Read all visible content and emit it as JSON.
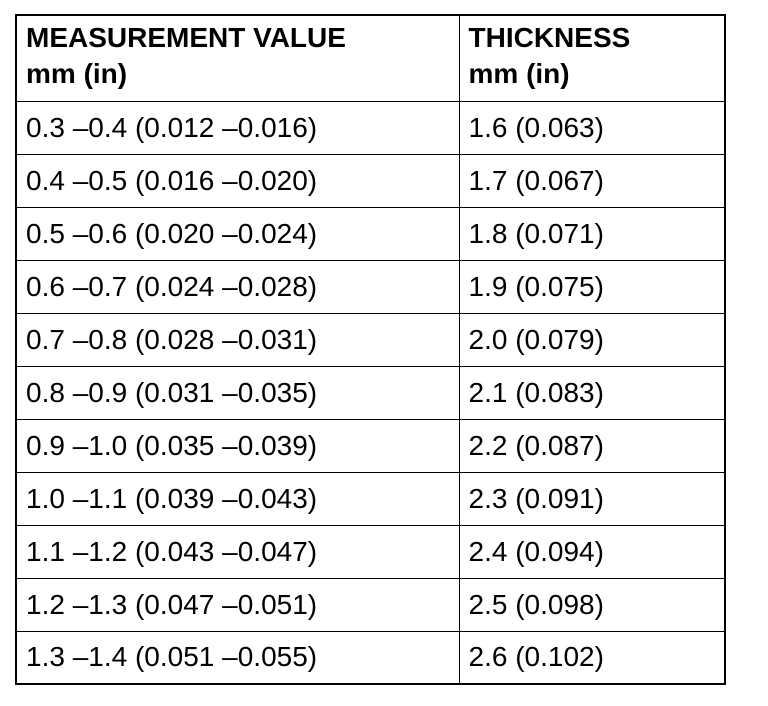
{
  "table": {
    "header": [
      [
        "MEASUREMENT VALUE",
        "mm (in)"
      ],
      [
        "THICKNESS",
        "mm (in)"
      ]
    ],
    "rows": [
      [
        "0.3 –0.4 (0.012 –0.016)",
        "1.6 (0.063)"
      ],
      [
        "0.4 –0.5 (0.016 –0.020)",
        "1.7 (0.067)"
      ],
      [
        "0.5 –0.6 (0.020 –0.024)",
        "1.8 (0.071)"
      ],
      [
        "0.6 –0.7 (0.024 –0.028)",
        "1.9 (0.075)"
      ],
      [
        "0.7 –0.8 (0.028 –0.031)",
        "2.0 (0.079)"
      ],
      [
        "0.8 –0.9 (0.031 –0.035)",
        "2.1 (0.083)"
      ],
      [
        "0.9 –1.0 (0.035 –0.039)",
        "2.2 (0.087)"
      ],
      [
        "1.0 –1.1 (0.039 –0.043)",
        "2.3 (0.091)"
      ],
      [
        "1.1 –1.2 (0.043 –0.047)",
        "2.4 (0.094)"
      ],
      [
        "1.2 –1.3 (0.047 –0.051)",
        "2.5 (0.098)"
      ],
      [
        "1.3 –1.4 (0.051 –0.055)",
        "2.6 (0.102)"
      ]
    ]
  }
}
